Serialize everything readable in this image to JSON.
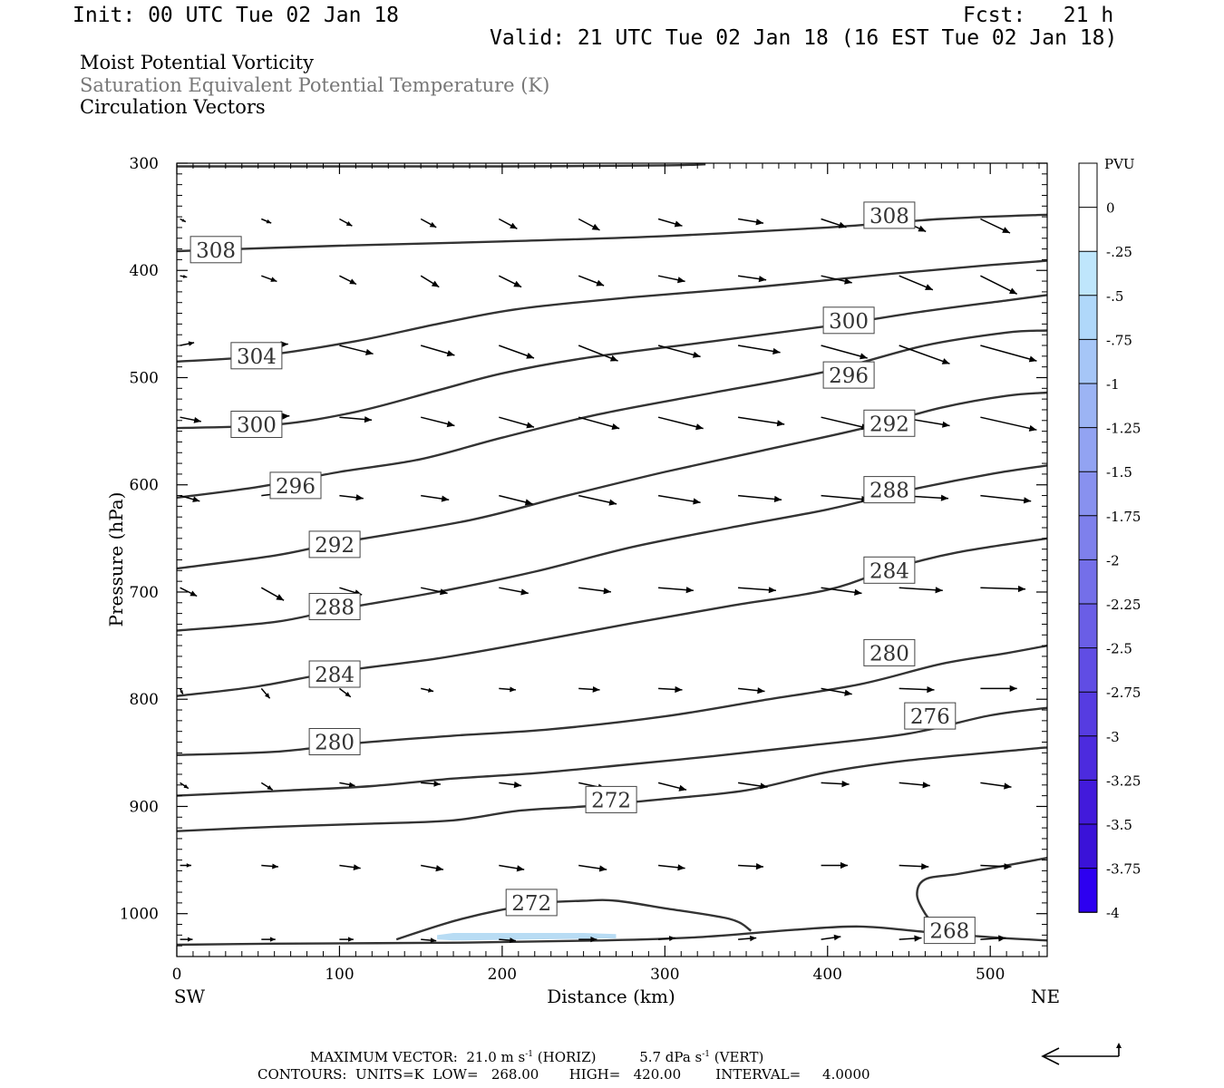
{
  "header": {
    "init": "Init: 00 UTC Tue 02 Jan 18",
    "fcst": "Fcst:   21 h",
    "valid": "Valid: 21 UTC Tue 02 Jan 18 (16 EST Tue 02 Jan 18)",
    "fields": [
      "Moist Potential Vorticity",
      "Saturation Equivalent Potential Temperature (K)",
      "Circulation Vectors"
    ]
  },
  "footer": {
    "vector_line": "MAXIMUM VECTOR:  21.0 m s",
    "vector_line_b": " (HORIZ)          5.7 dPa s",
    "vector_line_c": " (VERT)",
    "exp": "-1",
    "contours_line": "CONTOURS:  UNITS=K  LOW=   268.00       HIGH=   420.00        INTERVAL=     4.0000"
  },
  "colors": {
    "contour": "#333333",
    "vector": "#000000",
    "mpv_negative": "#b8dcf4"
  },
  "chart_data": {
    "type": "contour",
    "xlabel": "Distance (km)",
    "ylabel": "Pressure (hPa)",
    "xlim": [
      0,
      535
    ],
    "ylim": [
      1040,
      300
    ],
    "x_ticks": [
      0,
      100,
      200,
      300,
      400,
      500
    ],
    "y_ticks": [
      300,
      400,
      500,
      600,
      700,
      800,
      900,
      1000
    ],
    "x_end_labels": {
      "left": "SW",
      "right": "NE"
    },
    "colorbar": {
      "title": "PVU",
      "ticks": [
        "0",
        "-.25",
        "-.5",
        "-.75",
        "-1",
        "-1.25",
        "-1.5",
        "-1.75",
        "-2",
        "-2.25",
        "-2.5",
        "-2.75",
        "-3",
        "-3.25",
        "-3.5",
        "-3.75",
        "-4"
      ],
      "colors": [
        "#ffffff",
        "#ffffff",
        "#bfe6fc",
        "#b0d8fa",
        "#a6c6f7",
        "#9cb4f4",
        "#92a3f2",
        "#8891ef",
        "#7e80ec",
        "#746fe9",
        "#6a5ee6",
        "#604de4",
        "#563ce1",
        "#4c2bde",
        "#421adb",
        "#3a12d8",
        "#2d00f0"
      ]
    },
    "contours": [
      {
        "value": 268,
        "points": [
          [
            0,
            1029
          ],
          [
            60,
            1028
          ],
          [
            180,
            1027
          ],
          [
            260,
            1025
          ],
          [
            320,
            1022
          ],
          [
            380,
            1015
          ],
          [
            420,
            1012
          ],
          [
            460,
            1017
          ],
          [
            500,
            1022
          ],
          [
            535,
            1025
          ]
        ]
      },
      {
        "value": 272,
        "points": [
          [
            135,
            1024
          ],
          [
            175,
            1005
          ],
          [
            220,
            991
          ],
          [
            250,
            988
          ],
          [
            270,
            988
          ],
          [
            300,
            995
          ],
          [
            340,
            1005
          ],
          [
            353,
            1016
          ]
        ]
      },
      {
        "value": 272,
        "points": [
          [
            0,
            923
          ],
          [
            60,
            919
          ],
          [
            120,
            916
          ],
          [
            170,
            913
          ],
          [
            210,
            904
          ],
          [
            250,
            900
          ],
          [
            300,
            893
          ],
          [
            350,
            885
          ],
          [
            400,
            868
          ],
          [
            450,
            857
          ],
          [
            520,
            847
          ],
          [
            535,
            845
          ]
        ]
      },
      {
        "value": 276,
        "points": [
          [
            0,
            890
          ],
          [
            70,
            885
          ],
          [
            120,
            881
          ],
          [
            170,
            874
          ],
          [
            220,
            869
          ],
          [
            270,
            862
          ],
          [
            330,
            853
          ],
          [
            390,
            843
          ],
          [
            450,
            832
          ],
          [
            500,
            815
          ],
          [
            535,
            808
          ]
        ]
      },
      {
        "value": 276,
        "points": [
          [
            535,
            948
          ],
          [
            510,
            955
          ],
          [
            480,
            963
          ],
          [
            460,
            968
          ],
          [
            455,
            982
          ],
          [
            460,
            1000
          ],
          [
            470,
            1018
          ]
        ]
      },
      {
        "value": 280,
        "points": [
          [
            0,
            852
          ],
          [
            60,
            849
          ],
          [
            110,
            841
          ],
          [
            170,
            834
          ],
          [
            230,
            828
          ],
          [
            300,
            816
          ],
          [
            360,
            801
          ],
          [
            420,
            786
          ],
          [
            470,
            767
          ],
          [
            510,
            757
          ],
          [
            535,
            750
          ]
        ]
      },
      {
        "value": 284,
        "points": [
          [
            0,
            797
          ],
          [
            50,
            788
          ],
          [
            100,
            774
          ],
          [
            160,
            762
          ],
          [
            220,
            746
          ],
          [
            280,
            729
          ],
          [
            340,
            713
          ],
          [
            400,
            698
          ],
          [
            440,
            678
          ],
          [
            480,
            663
          ],
          [
            535,
            650
          ]
        ]
      },
      {
        "value": 288,
        "points": [
          [
            0,
            736
          ],
          [
            60,
            728
          ],
          [
            100,
            716
          ],
          [
            160,
            700
          ],
          [
            220,
            681
          ],
          [
            280,
            658
          ],
          [
            340,
            640
          ],
          [
            400,
            623
          ],
          [
            450,
            605
          ],
          [
            500,
            590
          ],
          [
            535,
            582
          ]
        ]
      },
      {
        "value": 292,
        "points": [
          [
            0,
            678
          ],
          [
            60,
            666
          ],
          [
            100,
            654
          ],
          [
            180,
            633
          ],
          [
            240,
            610
          ],
          [
            300,
            588
          ],
          [
            360,
            568
          ],
          [
            420,
            548
          ],
          [
            470,
            528
          ],
          [
            510,
            517
          ],
          [
            535,
            514
          ]
        ]
      },
      {
        "value": 296,
        "points": [
          [
            0,
            612
          ],
          [
            50,
            602
          ],
          [
            100,
            588
          ],
          [
            150,
            576
          ],
          [
            200,
            556
          ],
          [
            260,
            534
          ],
          [
            330,
            514
          ],
          [
            400,
            494
          ],
          [
            460,
            470
          ],
          [
            510,
            458
          ],
          [
            535,
            456
          ]
        ]
      },
      {
        "value": 300,
        "points": [
          [
            0,
            547
          ],
          [
            60,
            544
          ],
          [
            110,
            532
          ],
          [
            160,
            512
          ],
          [
            200,
            496
          ],
          [
            250,
            482
          ],
          [
            330,
            466
          ],
          [
            400,
            452
          ],
          [
            460,
            438
          ],
          [
            510,
            428
          ],
          [
            535,
            423
          ]
        ]
      },
      {
        "value": 304,
        "points": [
          [
            0,
            485
          ],
          [
            50,
            480
          ],
          [
            110,
            466
          ],
          [
            160,
            450
          ],
          [
            210,
            436
          ],
          [
            280,
            425
          ],
          [
            360,
            415
          ],
          [
            440,
            403
          ],
          [
            500,
            395
          ],
          [
            535,
            391
          ]
        ]
      },
      {
        "value": 308,
        "points": [
          [
            0,
            382
          ],
          [
            100,
            377
          ],
          [
            200,
            373
          ],
          [
            300,
            368
          ],
          [
            400,
            360
          ],
          [
            470,
            352
          ],
          [
            535,
            348
          ]
        ]
      },
      {
        "value": 312,
        "points": [
          [
            0,
            303
          ],
          [
            100,
            303
          ],
          [
            200,
            303
          ],
          [
            300,
            302
          ],
          [
            325,
            301
          ]
        ]
      }
    ],
    "contour_labels": [
      {
        "value": 308,
        "x": 24,
        "p": 381
      },
      {
        "value": 308,
        "x": 438,
        "p": 349
      },
      {
        "value": 304,
        "x": 49,
        "p": 480
      },
      {
        "value": 300,
        "x": 49,
        "p": 544
      },
      {
        "value": 300,
        "x": 413,
        "p": 447
      },
      {
        "value": 296,
        "x": 73,
        "p": 601
      },
      {
        "value": 296,
        "x": 413,
        "p": 498
      },
      {
        "value": 292,
        "x": 97,
        "p": 656
      },
      {
        "value": 292,
        "x": 438,
        "p": 543
      },
      {
        "value": 288,
        "x": 97,
        "p": 714
      },
      {
        "value": 288,
        "x": 438,
        "p": 605
      },
      {
        "value": 284,
        "x": 97,
        "p": 777
      },
      {
        "value": 284,
        "x": 438,
        "p": 680
      },
      {
        "value": 280,
        "x": 97,
        "p": 840
      },
      {
        "value": 280,
        "x": 438,
        "p": 757
      },
      {
        "value": 276,
        "x": 463,
        "p": 816
      },
      {
        "value": 272,
        "x": 267,
        "p": 894
      },
      {
        "value": 272,
        "x": 218,
        "p": 990
      },
      {
        "value": 268,
        "x": 475,
        "p": 1016
      }
    ],
    "mpv_negative_regions": [
      {
        "value": -0.25,
        "points": [
          [
            160,
            1020
          ],
          [
            170,
            1018
          ],
          [
            250,
            1018
          ],
          [
            270,
            1019
          ],
          [
            270,
            1023
          ],
          [
            220,
            1024
          ],
          [
            170,
            1025
          ],
          [
            160,
            1024
          ]
        ]
      }
    ],
    "vector_columns": [
      2,
      52,
      100,
      150,
      198,
      247,
      296,
      345,
      396,
      444,
      494
    ],
    "vector_rows": [
      {
        "p": 352,
        "vectors": [
          [
            4,
            2
          ],
          [
            7,
            3
          ],
          [
            9,
            5
          ],
          [
            11,
            6
          ],
          [
            13,
            7
          ],
          [
            15,
            8
          ],
          [
            17,
            5
          ],
          [
            18,
            3
          ],
          [
            18,
            6
          ],
          [
            19,
            9
          ],
          [
            21,
            10
          ]
        ]
      },
      {
        "p": 405,
        "vectors": [
          [
            5,
            1
          ],
          [
            11,
            4
          ],
          [
            12,
            6
          ],
          [
            13,
            8
          ],
          [
            16,
            8
          ],
          [
            18,
            7
          ],
          [
            19,
            4
          ],
          [
            20,
            3
          ],
          [
            22,
            5
          ],
          [
            24,
            10
          ],
          [
            26,
            13
          ]
        ]
      },
      {
        "p": 470,
        "vectors": [
          [
            10,
            -2
          ],
          [
            19,
            -1
          ],
          [
            24,
            6
          ],
          [
            24,
            7
          ],
          [
            25,
            9
          ],
          [
            28,
            11
          ],
          [
            30,
            8
          ],
          [
            30,
            5
          ],
          [
            33,
            9
          ],
          [
            36,
            13
          ],
          [
            40,
            11
          ]
        ]
      },
      {
        "p": 537,
        "vectors": [
          [
            15,
            3
          ],
          [
            20,
            -1
          ],
          [
            23,
            2
          ],
          [
            24,
            6
          ],
          [
            25,
            7
          ],
          [
            29,
            8
          ],
          [
            32,
            8
          ],
          [
            33,
            5
          ],
          [
            34,
            8
          ],
          [
            36,
            6
          ],
          [
            40,
            9
          ]
        ]
      },
      {
        "p": 610,
        "vectors": [
          [
            14,
            4
          ],
          [
            17,
            -2
          ],
          [
            17,
            2
          ],
          [
            20,
            3
          ],
          [
            24,
            6
          ],
          [
            27,
            6
          ],
          [
            30,
            5
          ],
          [
            31,
            3
          ],
          [
            34,
            3
          ],
          [
            35,
            2
          ],
          [
            36,
            4
          ]
        ]
      },
      {
        "p": 696,
        "vectors": [
          [
            12,
            6
          ],
          [
            16,
            9
          ],
          [
            16,
            5
          ],
          [
            19,
            4
          ],
          [
            21,
            4
          ],
          [
            23,
            3
          ],
          [
            25,
            2
          ],
          [
            27,
            2
          ],
          [
            29,
            4
          ],
          [
            31,
            2
          ],
          [
            32,
            1
          ]
        ]
      },
      {
        "p": 790,
        "vectors": [
          [
            2,
            4
          ],
          [
            6,
            7
          ],
          [
            8,
            6
          ],
          [
            9,
            2
          ],
          [
            12,
            1
          ],
          [
            15,
            1
          ],
          [
            17,
            1
          ],
          [
            19,
            2
          ],
          [
            22,
            4
          ],
          [
            25,
            1
          ],
          [
            26,
            0
          ]
        ]
      },
      {
        "p": 878,
        "vectors": [
          [
            6,
            4
          ],
          [
            8,
            5
          ],
          [
            11,
            2
          ],
          [
            14,
            1
          ],
          [
            16,
            2
          ],
          [
            19,
            4
          ],
          [
            20,
            5
          ],
          [
            21,
            3
          ],
          [
            20,
            1
          ],
          [
            22,
            2
          ],
          [
            22,
            3
          ]
        ]
      },
      {
        "p": 955,
        "vectors": [
          [
            8,
            0
          ],
          [
            12,
            1
          ],
          [
            15,
            2
          ],
          [
            16,
            3
          ],
          [
            18,
            3
          ],
          [
            20,
            3
          ],
          [
            19,
            2
          ],
          [
            18,
            1
          ],
          [
            19,
            0
          ],
          [
            21,
            1
          ],
          [
            22,
            1
          ]
        ]
      },
      {
        "p": 1024,
        "vectors": [
          [
            9,
            0
          ],
          [
            10,
            0
          ],
          [
            10,
            0
          ],
          [
            11,
            1
          ],
          [
            12,
            1
          ],
          [
            13,
            0
          ],
          [
            12,
            -1
          ],
          [
            13,
            -1
          ],
          [
            14,
            -2
          ],
          [
            16,
            -1
          ],
          [
            18,
            -1
          ]
        ]
      }
    ],
    "vector_scale_px_per_unit": 1.55
  }
}
